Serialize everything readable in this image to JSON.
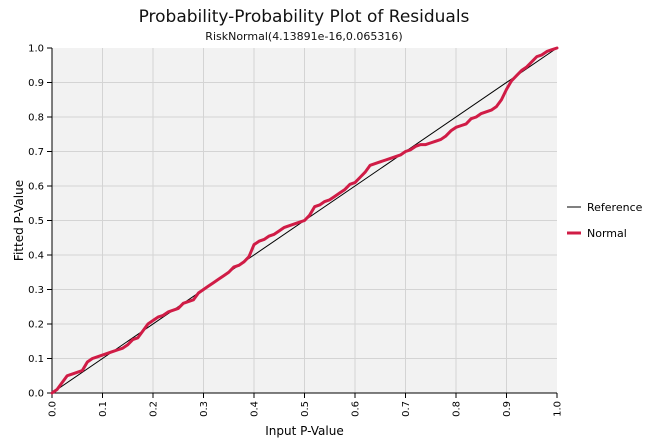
{
  "chart_data": {
    "type": "line",
    "title": "Probability-Probability Plot of Residuals",
    "subtitle": "RiskNormal(4.13891e-16,0.065316)",
    "xlabel": "Input P-Value",
    "ylabel": "Fitted P-Value",
    "xlim": [
      0,
      1
    ],
    "ylim": [
      0,
      1
    ],
    "x_ticks": [
      "0.0",
      "0.1",
      "0.2",
      "0.3",
      "0.4",
      "0.5",
      "0.6",
      "0.7",
      "0.8",
      "0.9",
      "1.0"
    ],
    "y_ticks": [
      "0.0",
      "0.1",
      "0.2",
      "0.3",
      "0.4",
      "0.5",
      "0.6",
      "0.7",
      "0.8",
      "0.9",
      "1.0"
    ],
    "grid": true,
    "legend_position": "right",
    "series": [
      {
        "name": "Reference",
        "color": "#000000",
        "x": [
          0,
          1
        ],
        "y": [
          0,
          1
        ]
      },
      {
        "name": "Normal",
        "color": "#d01c46",
        "x": [
          0.0,
          0.01,
          0.02,
          0.03,
          0.04,
          0.05,
          0.06,
          0.07,
          0.08,
          0.09,
          0.1,
          0.11,
          0.12,
          0.13,
          0.14,
          0.15,
          0.16,
          0.17,
          0.18,
          0.19,
          0.2,
          0.21,
          0.22,
          0.23,
          0.24,
          0.25,
          0.26,
          0.27,
          0.28,
          0.29,
          0.3,
          0.31,
          0.32,
          0.33,
          0.34,
          0.35,
          0.36,
          0.37,
          0.38,
          0.39,
          0.4,
          0.41,
          0.42,
          0.43,
          0.44,
          0.45,
          0.46,
          0.47,
          0.48,
          0.49,
          0.5,
          0.51,
          0.52,
          0.53,
          0.54,
          0.55,
          0.56,
          0.57,
          0.58,
          0.59,
          0.6,
          0.61,
          0.62,
          0.63,
          0.64,
          0.65,
          0.66,
          0.67,
          0.68,
          0.69,
          0.7,
          0.71,
          0.72,
          0.73,
          0.74,
          0.75,
          0.76,
          0.77,
          0.78,
          0.79,
          0.8,
          0.81,
          0.82,
          0.83,
          0.84,
          0.85,
          0.86,
          0.87,
          0.88,
          0.89,
          0.9,
          0.91,
          0.92,
          0.93,
          0.94,
          0.95,
          0.96,
          0.97,
          0.98,
          0.99,
          1.0
        ],
        "y": [
          0.0,
          0.01,
          0.03,
          0.05,
          0.055,
          0.06,
          0.065,
          0.09,
          0.1,
          0.105,
          0.11,
          0.115,
          0.12,
          0.125,
          0.13,
          0.14,
          0.155,
          0.16,
          0.18,
          0.2,
          0.21,
          0.22,
          0.225,
          0.235,
          0.24,
          0.245,
          0.26,
          0.265,
          0.27,
          0.29,
          0.3,
          0.31,
          0.32,
          0.33,
          0.34,
          0.35,
          0.365,
          0.37,
          0.38,
          0.395,
          0.43,
          0.44,
          0.445,
          0.455,
          0.46,
          0.47,
          0.48,
          0.485,
          0.49,
          0.495,
          0.5,
          0.515,
          0.54,
          0.545,
          0.555,
          0.56,
          0.57,
          0.58,
          0.59,
          0.605,
          0.61,
          0.625,
          0.64,
          0.66,
          0.665,
          0.67,
          0.675,
          0.68,
          0.685,
          0.69,
          0.7,
          0.705,
          0.715,
          0.72,
          0.72,
          0.725,
          0.73,
          0.735,
          0.745,
          0.76,
          0.77,
          0.775,
          0.78,
          0.795,
          0.8,
          0.81,
          0.815,
          0.82,
          0.83,
          0.85,
          0.88,
          0.905,
          0.92,
          0.935,
          0.945,
          0.96,
          0.975,
          0.98,
          0.99,
          0.995,
          1.0
        ]
      }
    ]
  }
}
